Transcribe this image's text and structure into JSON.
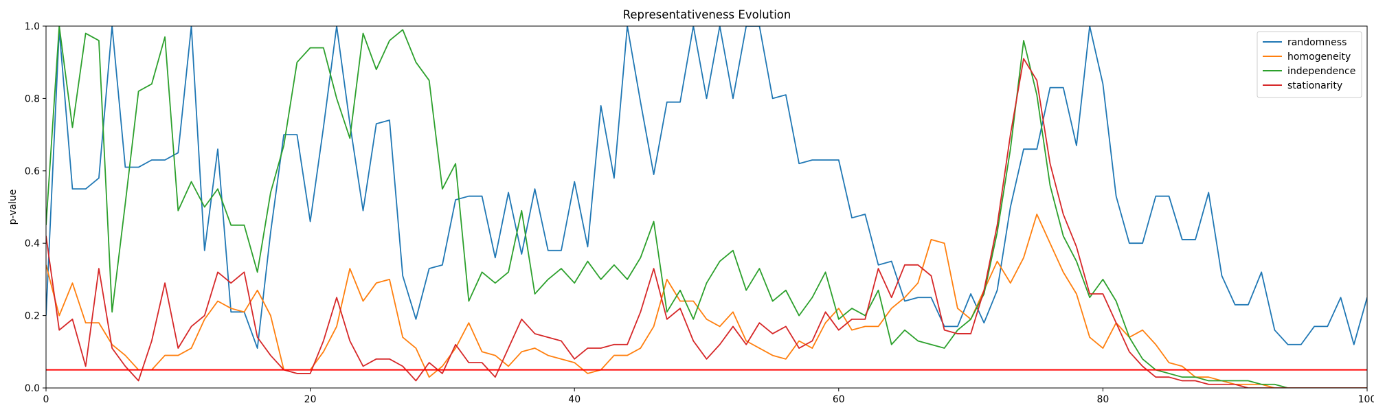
{
  "chart_data": {
    "type": "line",
    "title": "Representativeness Evolution",
    "xlabel": "",
    "ylabel": "p-value",
    "xlim": [
      0,
      100
    ],
    "ylim": [
      0,
      1
    ],
    "xticks": [
      0,
      20,
      40,
      60,
      80,
      100
    ],
    "yticks": [
      0.0,
      0.2,
      0.4,
      0.6,
      0.8,
      1.0
    ],
    "x_tick_labels": [
      "0",
      "20",
      "40",
      "60",
      "80",
      "100"
    ],
    "y_tick_labels": [
      "0.0",
      "0.2",
      "0.4",
      "0.6",
      "0.8",
      "1.0"
    ],
    "grid": false,
    "legend_position": "top-right",
    "x": [
      0,
      1,
      2,
      3,
      4,
      5,
      6,
      7,
      8,
      9,
      10,
      11,
      12,
      13,
      14,
      15,
      16,
      17,
      18,
      19,
      20,
      21,
      22,
      23,
      24,
      25,
      26,
      27,
      28,
      29,
      30,
      31,
      32,
      33,
      34,
      35,
      36,
      37,
      38,
      39,
      40,
      41,
      42,
      43,
      44,
      45,
      46,
      47,
      48,
      49,
      50,
      51,
      52,
      53,
      54,
      55,
      56,
      57,
      58,
      59,
      60,
      61,
      62,
      63,
      64,
      65,
      66,
      67,
      68,
      69,
      70,
      71,
      72,
      73,
      74,
      75,
      76,
      77,
      78,
      79,
      80,
      81,
      82,
      83,
      84,
      85,
      86,
      87,
      88,
      89,
      90,
      91,
      92,
      93,
      94,
      95,
      96,
      97,
      98,
      99,
      100
    ],
    "series": [
      {
        "name": "randomness",
        "color": "#1f77b4",
        "values": [
          0.2,
          0.99,
          0.55,
          0.55,
          0.58,
          1.0,
          0.61,
          0.61,
          0.63,
          0.63,
          0.65,
          1.0,
          0.38,
          0.66,
          0.21,
          0.21,
          0.11,
          0.43,
          0.7,
          0.7,
          0.46,
          0.72,
          1.0,
          0.73,
          0.49,
          0.73,
          0.74,
          0.31,
          0.19,
          0.33,
          0.34,
          0.52,
          0.53,
          0.53,
          0.36,
          0.54,
          0.37,
          0.55,
          0.38,
          0.38,
          0.57,
          0.39,
          0.78,
          0.58,
          1.0,
          0.79,
          0.59,
          0.79,
          0.79,
          1.0,
          0.8,
          1.0,
          0.8,
          1.0,
          1.0,
          0.8,
          0.81,
          0.62,
          0.63,
          0.63,
          0.63,
          0.47,
          0.48,
          0.34,
          0.35,
          0.24,
          0.25,
          0.25,
          0.17,
          0.17,
          0.26,
          0.18,
          0.27,
          0.5,
          0.66,
          0.66,
          0.83,
          0.83,
          0.67,
          1.0,
          0.84,
          0.53,
          0.4,
          0.4,
          0.53,
          0.53,
          0.41,
          0.41,
          0.54,
          0.31,
          0.23,
          0.23,
          0.32,
          0.16,
          0.12,
          0.12,
          0.17,
          0.17,
          0.25,
          0.12,
          0.25
        ]
      },
      {
        "name": "homogeneity",
        "color": "#ff7f0e",
        "values": [
          0.34,
          0.2,
          0.29,
          0.18,
          0.18,
          0.12,
          0.09,
          0.05,
          0.05,
          0.09,
          0.09,
          0.11,
          0.19,
          0.24,
          0.22,
          0.21,
          0.27,
          0.2,
          0.05,
          0.05,
          0.05,
          0.1,
          0.17,
          0.33,
          0.24,
          0.29,
          0.3,
          0.14,
          0.11,
          0.03,
          0.06,
          0.11,
          0.18,
          0.1,
          0.09,
          0.06,
          0.1,
          0.11,
          0.09,
          0.08,
          0.07,
          0.04,
          0.05,
          0.09,
          0.09,
          0.11,
          0.17,
          0.3,
          0.24,
          0.24,
          0.19,
          0.17,
          0.21,
          0.13,
          0.11,
          0.09,
          0.08,
          0.13,
          0.11,
          0.18,
          0.22,
          0.16,
          0.17,
          0.17,
          0.22,
          0.25,
          0.29,
          0.41,
          0.4,
          0.22,
          0.19,
          0.27,
          0.35,
          0.29,
          0.36,
          0.48,
          0.4,
          0.32,
          0.26,
          0.14,
          0.11,
          0.18,
          0.14,
          0.16,
          0.12,
          0.07,
          0.06,
          0.03,
          0.03,
          0.02,
          0.01,
          0.01,
          0.01,
          0.0,
          0.0,
          0.0,
          0.0,
          0.0,
          0.0,
          0.0,
          0.0
        ]
      },
      {
        "name": "independence",
        "color": "#2ca02c",
        "values": [
          0.45,
          1.0,
          0.72,
          0.98,
          0.96,
          0.21,
          0.51,
          0.82,
          0.84,
          0.97,
          0.49,
          0.57,
          0.5,
          0.55,
          0.45,
          0.45,
          0.32,
          0.54,
          0.67,
          0.9,
          0.94,
          0.94,
          0.8,
          0.69,
          0.98,
          0.88,
          0.96,
          0.99,
          0.9,
          0.85,
          0.55,
          0.62,
          0.24,
          0.32,
          0.29,
          0.32,
          0.49,
          0.26,
          0.3,
          0.33,
          0.29,
          0.35,
          0.3,
          0.34,
          0.3,
          0.36,
          0.46,
          0.21,
          0.27,
          0.19,
          0.29,
          0.35,
          0.38,
          0.27,
          0.33,
          0.24,
          0.27,
          0.2,
          0.25,
          0.32,
          0.19,
          0.22,
          0.2,
          0.27,
          0.12,
          0.16,
          0.13,
          0.12,
          0.11,
          0.16,
          0.19,
          0.26,
          0.43,
          0.66,
          0.96,
          0.81,
          0.56,
          0.42,
          0.35,
          0.25,
          0.3,
          0.24,
          0.14,
          0.08,
          0.05,
          0.04,
          0.03,
          0.03,
          0.02,
          0.02,
          0.02,
          0.02,
          0.01,
          0.01,
          0.0,
          0.0,
          0.0,
          0.0,
          0.0,
          0.0,
          0.0
        ]
      },
      {
        "name": "stationarity",
        "color": "#d62728",
        "values": [
          0.42,
          0.16,
          0.19,
          0.06,
          0.33,
          0.11,
          0.06,
          0.02,
          0.13,
          0.29,
          0.11,
          0.17,
          0.2,
          0.32,
          0.29,
          0.32,
          0.14,
          0.09,
          0.05,
          0.04,
          0.04,
          0.13,
          0.25,
          0.13,
          0.06,
          0.08,
          0.08,
          0.06,
          0.02,
          0.07,
          0.04,
          0.12,
          0.07,
          0.07,
          0.03,
          0.11,
          0.19,
          0.15,
          0.14,
          0.13,
          0.08,
          0.11,
          0.11,
          0.12,
          0.12,
          0.21,
          0.33,
          0.19,
          0.22,
          0.13,
          0.08,
          0.12,
          0.17,
          0.12,
          0.18,
          0.15,
          0.17,
          0.11,
          0.13,
          0.21,
          0.16,
          0.19,
          0.19,
          0.33,
          0.25,
          0.34,
          0.34,
          0.31,
          0.16,
          0.15,
          0.15,
          0.27,
          0.45,
          0.7,
          0.91,
          0.85,
          0.62,
          0.48,
          0.39,
          0.26,
          0.26,
          0.18,
          0.1,
          0.06,
          0.03,
          0.03,
          0.02,
          0.02,
          0.01,
          0.01,
          0.01,
          0.0,
          0.0,
          0.0,
          0.0,
          0.0,
          0.0,
          0.0,
          0.0,
          0.0,
          0.0
        ]
      }
    ],
    "reference_lines": [
      {
        "value": 0.05,
        "color": "#ff0000"
      }
    ]
  }
}
